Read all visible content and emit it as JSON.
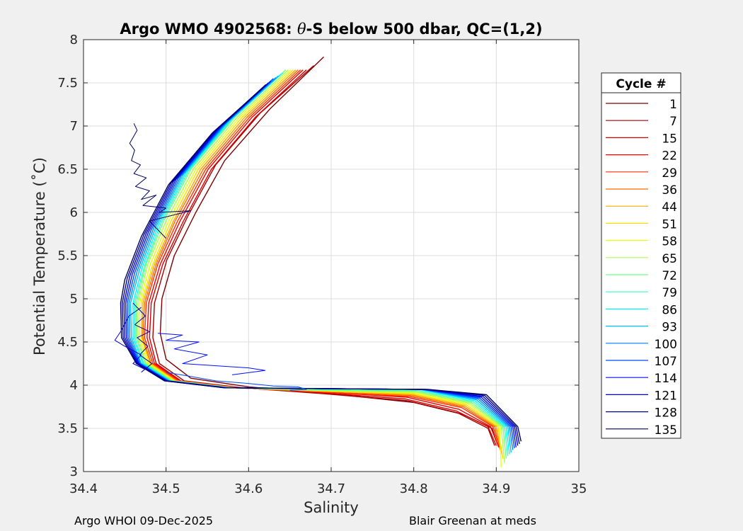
{
  "chart_data": {
    "type": "line",
    "title_prefix": "Argo WMO 4902568: ",
    "title_theta": "θ",
    "title_suffix": "-S below 500 dbar,  QC=(1,2)",
    "xlabel": "Salinity",
    "ylabel": "Potential Temperature (˚C)",
    "xlim": [
      34.4,
      35.0
    ],
    "ylim": [
      3.0,
      8.0
    ],
    "xticks": [
      "34.4",
      "34.5",
      "34.6",
      "34.7",
      "34.8",
      "34.9",
      "35"
    ],
    "yticks": [
      "3",
      "3.5",
      "4",
      "4.5",
      "5",
      "5.5",
      "6",
      "6.5",
      "7",
      "7.5",
      "8"
    ],
    "grid": true,
    "legend_title": "Cycle #",
    "legend_placement": "right-outside",
    "cycles": [
      "1",
      "7",
      "15",
      "22",
      "29",
      "36",
      "44",
      "51",
      "58",
      "65",
      "72",
      "79",
      "86",
      "93",
      "100",
      "107",
      "114",
      "121",
      "128",
      "135"
    ],
    "cycle_colors": [
      "#7f0000",
      "#a50000",
      "#d40000",
      "#f00000",
      "#ff3000",
      "#ff6a00",
      "#ffa300",
      "#ffdc00",
      "#e3ff13",
      "#aaff4d",
      "#71ff86",
      "#38ffbf",
      "#00f5ff",
      "#00bcff",
      "#0083ff",
      "#004aff",
      "#0010ff",
      "#0000d3",
      "#00009a",
      "#000061"
    ],
    "series": [
      {
        "name": "1",
        "x": [
          34.691,
          34.626,
          34.571,
          34.536,
          34.51,
          34.495,
          34.493,
          34.5,
          34.53,
          34.6,
          34.7,
          34.8,
          34.86,
          34.895,
          34.9
        ],
        "y": [
          7.8,
          7.2,
          6.6,
          6.0,
          5.5,
          5.0,
          4.6,
          4.3,
          4.08,
          3.98,
          3.9,
          3.8,
          3.66,
          3.5,
          3.35
        ]
      },
      {
        "name": "7",
        "x": [
          34.679,
          34.614,
          34.56,
          34.526,
          34.501,
          34.486,
          34.484,
          34.492,
          34.522,
          34.592,
          34.692,
          34.793,
          34.853,
          34.89,
          34.898
        ],
        "y": [
          7.7,
          7.15,
          6.55,
          5.95,
          5.45,
          4.95,
          4.55,
          4.25,
          4.05,
          3.97,
          3.9,
          3.82,
          3.68,
          3.5,
          3.3
        ]
      },
      {
        "name": "15",
        "x": [
          34.67,
          34.608,
          34.555,
          34.521,
          34.496,
          34.482,
          34.48,
          34.488,
          34.518,
          34.588,
          34.69,
          34.79,
          34.852,
          34.89,
          34.9
        ],
        "y": [
          7.65,
          7.1,
          6.5,
          5.9,
          5.4,
          4.95,
          4.55,
          4.25,
          4.05,
          3.97,
          3.91,
          3.84,
          3.7,
          3.52,
          3.3
        ]
      },
      {
        "name": "22",
        "x": [
          34.666,
          34.604,
          34.551,
          34.517,
          34.493,
          34.479,
          34.477,
          34.486,
          34.517,
          34.587,
          34.69,
          34.792,
          34.855,
          34.893,
          34.903
        ],
        "y": [
          7.65,
          7.1,
          6.5,
          5.9,
          5.4,
          4.95,
          4.55,
          4.25,
          4.05,
          3.97,
          3.92,
          3.86,
          3.72,
          3.52,
          3.28
        ]
      },
      {
        "name": "29",
        "x": [
          34.663,
          34.601,
          34.548,
          34.514,
          34.49,
          34.476,
          34.474,
          34.484,
          34.515,
          34.585,
          34.69,
          34.795,
          34.858,
          34.896,
          34.905
        ],
        "y": [
          7.65,
          7.1,
          6.5,
          5.9,
          5.4,
          4.95,
          4.55,
          4.25,
          4.05,
          3.97,
          3.92,
          3.87,
          3.74,
          3.52,
          3.25
        ]
      },
      {
        "name": "36",
        "x": [
          34.66,
          34.598,
          34.545,
          34.511,
          34.488,
          34.474,
          34.472,
          34.482,
          34.513,
          34.584,
          34.69,
          34.797,
          34.86,
          34.898,
          34.906
        ],
        "y": [
          7.65,
          7.1,
          6.5,
          5.9,
          5.4,
          4.95,
          4.55,
          4.25,
          4.05,
          3.97,
          3.93,
          3.88,
          3.75,
          3.52,
          3.22
        ]
      },
      {
        "name": "44",
        "x": [
          34.657,
          34.595,
          34.542,
          34.509,
          34.486,
          34.472,
          34.471,
          34.481,
          34.512,
          34.583,
          34.69,
          34.798,
          34.862,
          34.9,
          34.907
        ],
        "y": [
          7.65,
          7.1,
          6.5,
          5.9,
          5.4,
          4.95,
          4.55,
          4.25,
          4.05,
          3.97,
          3.93,
          3.89,
          3.76,
          3.52,
          3.2
        ]
      },
      {
        "name": "51",
        "x": [
          34.654,
          34.592,
          34.539,
          34.506,
          34.484,
          34.47,
          34.47,
          34.48,
          34.511,
          34.582,
          34.69,
          34.799,
          34.864,
          34.902,
          34.908
        ],
        "y": [
          7.65,
          7.1,
          6.5,
          5.9,
          5.4,
          4.95,
          4.55,
          4.25,
          4.05,
          3.97,
          3.93,
          3.9,
          3.77,
          3.52,
          3.15
        ]
      },
      {
        "name": "58",
        "x": [
          34.651,
          34.589,
          34.536,
          34.503,
          34.481,
          34.468,
          34.468,
          34.478,
          34.51,
          34.581,
          34.69,
          34.8,
          34.866,
          34.904,
          34.906
        ],
        "y": [
          7.65,
          7.1,
          6.5,
          5.9,
          5.4,
          4.95,
          4.55,
          4.25,
          4.05,
          3.97,
          3.94,
          3.91,
          3.78,
          3.52,
          3.05
        ]
      },
      {
        "name": "65",
        "x": [
          34.648,
          34.586,
          34.533,
          34.5,
          34.478,
          34.466,
          34.466,
          34.476,
          34.508,
          34.58,
          34.69,
          34.802,
          34.868,
          34.906,
          34.91
        ],
        "y": [
          7.65,
          7.1,
          6.5,
          5.9,
          5.4,
          4.95,
          4.55,
          4.25,
          4.05,
          3.97,
          3.94,
          3.92,
          3.79,
          3.52,
          3.1
        ]
      },
      {
        "name": "72",
        "x": [
          34.645,
          34.583,
          34.53,
          34.497,
          34.476,
          34.464,
          34.464,
          34.475,
          34.507,
          34.579,
          34.69,
          34.803,
          34.87,
          34.908,
          34.912
        ],
        "y": [
          7.65,
          7.1,
          6.5,
          5.9,
          5.4,
          4.95,
          4.55,
          4.25,
          4.05,
          3.97,
          3.94,
          3.93,
          3.8,
          3.52,
          3.15
        ]
      },
      {
        "name": "79",
        "x": [
          34.642,
          34.58,
          34.527,
          34.494,
          34.474,
          34.462,
          34.462,
          34.473,
          34.506,
          34.578,
          34.69,
          34.805,
          34.872,
          34.91,
          34.914
        ],
        "y": [
          7.62,
          7.08,
          6.48,
          5.88,
          5.38,
          4.95,
          4.55,
          4.25,
          4.05,
          3.97,
          3.95,
          3.94,
          3.81,
          3.52,
          3.18
        ]
      },
      {
        "name": "86",
        "x": [
          34.639,
          34.577,
          34.524,
          34.491,
          34.471,
          34.46,
          34.46,
          34.472,
          34.505,
          34.577,
          34.69,
          34.807,
          34.874,
          34.912,
          34.916
        ],
        "y": [
          7.6,
          7.06,
          6.46,
          5.86,
          5.36,
          4.95,
          4.55,
          4.25,
          4.05,
          3.97,
          3.96,
          3.95,
          3.82,
          3.52,
          3.2
        ]
      },
      {
        "name": "93",
        "x": [
          34.636,
          34.574,
          34.521,
          34.488,
          34.468,
          34.457,
          34.458,
          34.47,
          34.504,
          34.576,
          34.69,
          34.808,
          34.876,
          34.914,
          34.918
        ],
        "y": [
          7.58,
          7.04,
          6.44,
          5.84,
          5.34,
          4.95,
          4.55,
          4.25,
          4.05,
          3.97,
          3.96,
          3.95,
          3.83,
          3.52,
          3.22
        ]
      },
      {
        "name": "100",
        "x": [
          34.633,
          34.571,
          34.518,
          34.485,
          34.465,
          34.455,
          34.456,
          34.469,
          34.503,
          34.575,
          34.69,
          34.81,
          34.878,
          34.916,
          34.92
        ],
        "y": [
          7.56,
          7.02,
          6.42,
          5.82,
          5.32,
          4.95,
          4.55,
          4.25,
          4.05,
          3.97,
          3.96,
          3.95,
          3.84,
          3.52,
          3.25
        ]
      },
      {
        "name": "107",
        "x": [
          34.63,
          34.568,
          34.515,
          34.482,
          34.462,
          34.453,
          34.454,
          34.468,
          34.502,
          34.574,
          34.69,
          34.812,
          34.88,
          34.918,
          34.922
        ],
        "y": [
          7.55,
          7.0,
          6.4,
          5.8,
          5.3,
          4.95,
          4.55,
          4.25,
          4.05,
          3.97,
          3.96,
          3.95,
          3.85,
          3.52,
          3.27
        ]
      },
      {
        "name": "114",
        "x": [
          34.627,
          34.565,
          34.512,
          34.479,
          34.459,
          34.451,
          34.452,
          34.467,
          34.501,
          34.573,
          34.69,
          34.813,
          34.882,
          34.92,
          34.924
        ],
        "y": [
          7.52,
          6.98,
          6.38,
          5.78,
          5.28,
          4.95,
          4.55,
          4.25,
          4.05,
          3.97,
          3.96,
          3.95,
          3.86,
          3.52,
          3.28
        ]
      },
      {
        "name": "121",
        "x": [
          34.624,
          34.562,
          34.509,
          34.476,
          34.456,
          34.449,
          34.45,
          34.466,
          34.5,
          34.572,
          34.69,
          34.815,
          34.884,
          34.922,
          34.926
        ],
        "y": [
          7.5,
          6.96,
          6.36,
          5.76,
          5.26,
          4.95,
          4.55,
          4.25,
          4.05,
          3.97,
          3.96,
          3.95,
          3.87,
          3.52,
          3.3
        ]
      },
      {
        "name": "128",
        "x": [
          34.621,
          34.559,
          34.506,
          34.473,
          34.453,
          34.447,
          34.448,
          34.465,
          34.499,
          34.571,
          34.69,
          34.817,
          34.886,
          34.924,
          34.928
        ],
        "y": [
          7.48,
          6.94,
          6.34,
          5.74,
          5.24,
          4.95,
          4.55,
          4.25,
          4.05,
          3.97,
          3.96,
          3.95,
          3.88,
          3.52,
          3.32
        ]
      },
      {
        "name": "135",
        "x": [
          34.618,
          34.556,
          34.503,
          34.47,
          34.45,
          34.445,
          34.446,
          34.464,
          34.498,
          34.57,
          34.69,
          34.818,
          34.888,
          34.926,
          34.93
        ],
        "y": [
          7.45,
          6.92,
          6.32,
          5.72,
          5.22,
          4.95,
          4.55,
          4.25,
          4.05,
          3.97,
          3.96,
          3.95,
          3.89,
          3.52,
          3.35
        ]
      }
    ],
    "anomaly_traces": [
      {
        "name": "135",
        "x": [
          34.461,
          34.465,
          34.456,
          34.462,
          34.458,
          34.469,
          34.461,
          34.476,
          34.463,
          34.48,
          34.47,
          34.488,
          34.472,
          34.5,
          34.492,
          34.53,
          34.48,
          34.5
        ],
        "y": [
          7.03,
          6.95,
          6.8,
          6.72,
          6.6,
          6.55,
          6.45,
          6.4,
          6.3,
          6.25,
          6.15,
          6.2,
          6.08,
          6.05,
          6.0,
          6.02,
          5.9,
          5.7
        ]
      },
      {
        "name": "128",
        "x": [
          34.46,
          34.475,
          34.462,
          34.48,
          34.465,
          34.478,
          34.468,
          34.483,
          34.47
        ],
        "y": [
          4.95,
          4.8,
          4.7,
          4.62,
          4.55,
          4.45,
          4.35,
          4.25,
          4.15
        ]
      },
      {
        "name": "121",
        "x": [
          34.47,
          34.455,
          34.445,
          34.438,
          34.45,
          34.47,
          34.46,
          34.475
        ],
        "y": [
          4.9,
          4.8,
          4.62,
          4.52,
          4.45,
          4.35,
          4.25,
          4.18
        ]
      },
      {
        "name": "114",
        "x": [
          34.49,
          34.52,
          34.5,
          34.54,
          34.51,
          34.55,
          34.52,
          34.6,
          34.62,
          34.58
        ],
        "y": [
          4.6,
          4.58,
          4.52,
          4.5,
          4.42,
          4.35,
          4.25,
          4.2,
          4.17,
          4.12
        ]
      },
      {
        "name": "107",
        "x": [
          34.5,
          34.53,
          34.56,
          34.6,
          34.63,
          34.66,
          34.67,
          34.65
        ],
        "y": [
          4.15,
          4.1,
          4.05,
          4.02,
          3.99,
          3.98,
          3.95,
          3.94
        ]
      }
    ]
  },
  "footer": {
    "left": "Argo WHOI 09-Dec-2025",
    "right": "Blair Greenan at meds"
  }
}
